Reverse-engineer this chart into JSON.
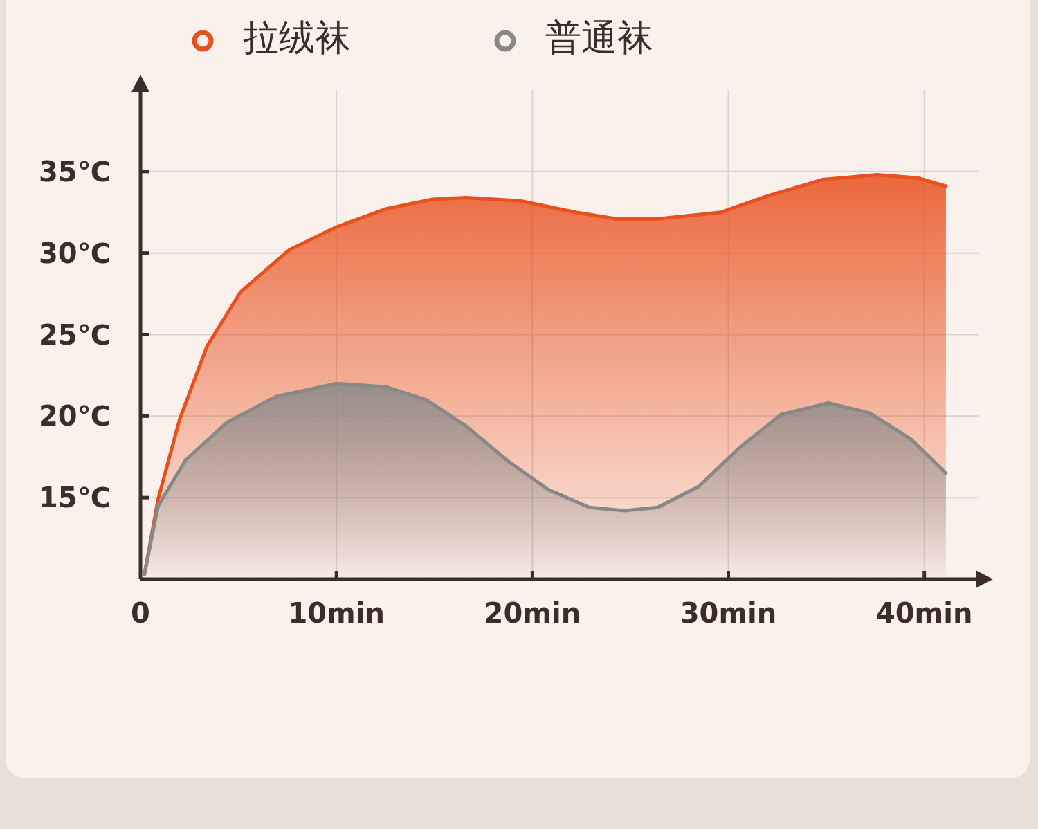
{
  "chart_data": {
    "type": "area",
    "legend": "top",
    "grid": true,
    "xlim": [
      0,
      42.8
    ],
    "ylim": [
      10,
      40
    ],
    "xticks": [
      0,
      {
        "value": 10,
        "label": "10min"
      },
      {
        "value": 20,
        "label": "20min"
      },
      {
        "value": 30,
        "label": "30min"
      },
      {
        "value": 40,
        "label": "40min"
      }
    ],
    "yticks": [
      {
        "value": 15,
        "label": "15℃"
      },
      {
        "value": 20,
        "label": "20℃"
      },
      {
        "value": 25,
        "label": "25℃"
      },
      {
        "value": 30,
        "label": "30℃"
      },
      {
        "value": 35,
        "label": "35℃"
      }
    ],
    "series": [
      {
        "name": "拉绒袜",
        "color": "#e8501e",
        "x": [
          0.2,
          0.9,
          2.0,
          3.4,
          5.1,
          7.6,
          10.0,
          12.5,
          14.9,
          16.6,
          19.4,
          22.2,
          24.3,
          26.4,
          29.6,
          32.0,
          34.8,
          37.6,
          39.7,
          41.1
        ],
        "values": [
          10.3,
          14.9,
          19.8,
          24.3,
          27.6,
          30.2,
          31.6,
          32.7,
          33.3,
          33.4,
          33.2,
          32.5,
          32.1,
          32.1,
          32.5,
          33.5,
          34.5,
          34.8,
          34.6,
          34.1
        ]
      },
      {
        "name": "普通袜",
        "color": "#888888",
        "x": [
          0.2,
          0.9,
          2.3,
          4.4,
          6.9,
          10.0,
          12.5,
          14.6,
          16.6,
          18.7,
          20.8,
          22.9,
          24.7,
          26.4,
          28.5,
          30.6,
          32.7,
          35.1,
          37.2,
          39.3,
          41.1
        ],
        "values": [
          10.3,
          14.5,
          17.3,
          19.6,
          21.2,
          22.0,
          21.8,
          21.0,
          19.4,
          17.3,
          15.5,
          14.4,
          14.2,
          14.4,
          15.7,
          18.1,
          20.1,
          20.8,
          20.2,
          18.6,
          16.5
        ]
      }
    ]
  }
}
